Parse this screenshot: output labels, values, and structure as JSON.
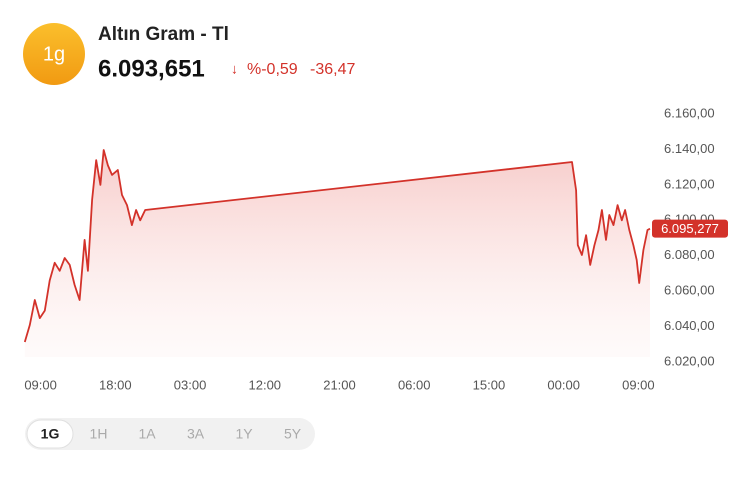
{
  "chart_data": {
    "type": "line",
    "badge": "1g",
    "title": "Altın Gram - Tl",
    "price": "6.093,651",
    "change_percent": "%-0,59",
    "change": "-36,47",
    "current_label": "6.095,277",
    "tabs": [
      "1G",
      "1H",
      "1A",
      "3A",
      "1Y",
      "5Y"
    ],
    "active_tab": 0,
    "x": [
      -1.9,
      -1.3,
      -0.7,
      -0.1,
      0.5,
      1.1,
      1.7,
      2.3,
      2.9,
      3.5,
      4.1,
      4.7,
      5.3,
      5.7,
      6.2,
      6.7,
      7.2,
      7.6,
      8.1,
      8.6,
      9.3,
      9.8,
      10.4,
      11,
      11.5,
      12,
      12.6,
      64.0,
      64.5,
      64.7,
      65.2,
      65.7,
      66.2,
      66.7,
      67.2,
      67.6,
      68.1,
      68.5,
      69.0,
      69.5,
      70.0,
      70.4,
      70.9,
      71.4,
      71.8,
      72.1,
      72.6,
      73.1,
      73.4
    ],
    "series": [
      {
        "color": "#d3322a",
        "values": [
          6031.3,
          6040.9,
          6055,
          6044.8,
          6049,
          6066,
          6076,
          6071.5,
          6078.7,
          6074.8,
          6063.5,
          6055,
          6088.9,
          6071.5,
          6111.5,
          6134,
          6120,
          6139.7,
          6131,
          6125.6,
          6128.4,
          6114.3,
          6108.6,
          6097.3,
          6105.8,
          6100,
          6105.8,
          6132.9,
          6117,
          6086,
          6080.4,
          6091.6,
          6074.8,
          6085.9,
          6094.5,
          6105.8,
          6088.9,
          6103,
          6097.3,
          6108.6,
          6100,
          6105.8,
          6094.5,
          6085.9,
          6077.6,
          6064.6,
          6083.2,
          6094.5,
          6095.277
        ]
      }
    ],
    "xlim": [
      -2,
      74
    ],
    "xticks": [
      {
        "value": 0,
        "label": "09:00"
      },
      {
        "value": 9,
        "label": "18:00"
      },
      {
        "value": 18,
        "label": "03:00"
      },
      {
        "value": 27,
        "label": "12:00"
      },
      {
        "value": 36,
        "label": "21:00"
      },
      {
        "value": 45,
        "label": "06:00"
      },
      {
        "value": 54,
        "label": "15:00"
      },
      {
        "value": 63,
        "label": "00:00"
      },
      {
        "value": 72,
        "label": "09:00"
      }
    ],
    "ylim": [
      6020,
      6160
    ],
    "yticks": [
      {
        "value": 6020,
        "label": "6.020,00"
      },
      {
        "value": 6040,
        "label": "6.040,00"
      },
      {
        "value": 6060,
        "label": "6.060,00"
      },
      {
        "value": 6080,
        "label": "6.080,00"
      },
      {
        "value": 6100,
        "label": "6.100,00"
      },
      {
        "value": 6120,
        "label": "6.120,00"
      },
      {
        "value": 6140,
        "label": "6.140,00"
      },
      {
        "value": 6160,
        "label": "6.160,00"
      }
    ]
  }
}
